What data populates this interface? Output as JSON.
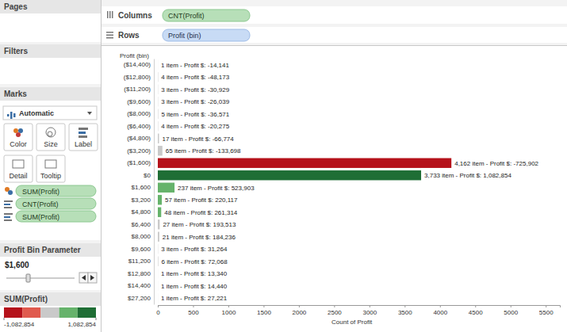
{
  "chart_data": {
    "type": "bar",
    "orientation": "horizontal",
    "data_labels": true,
    "grid": false,
    "y_label": "Profit (bin)",
    "x_label": "Count of Profit",
    "categories": [
      "($14,400)",
      "($12,800)",
      "($11,200)",
      "($9,600)",
      "($8,000)",
      "($6,400)",
      "($4,800)",
      "($3,200)",
      "($1,600)",
      "$0",
      "$1,600",
      "$3,200",
      "$4,800",
      "$6,400",
      "$8,000",
      "$9,600",
      "$11,200",
      "$12,800",
      "$14,400",
      "$27,200"
    ],
    "series": [
      {
        "values": [
          1,
          4,
          3,
          3,
          5,
          4,
          17,
          65,
          4162,
          3733,
          237,
          57,
          48,
          27,
          21,
          3,
          6,
          1,
          1,
          1
        ],
        "value_labels": [
          "1 item - Profit $: -14,141",
          "4 item - Profit $: -48,173",
          "3 item - Profit $: -30,929",
          "3 item - Profit $: -26,039",
          "5 item - Profit $: -36,571",
          "4 item - Profit $: -20,275",
          "17 item - Profit $: -66,774",
          "65 item - Profit $: -133,698",
          "4,162 item - Profit $: -725,902",
          "3,733 item - Profit $: 1,082,854",
          "237 item - Profit $: 523,903",
          "57 item - Profit $: 220,117",
          "48 item - Profit $: 261,314",
          "27 item - Profit $: 193,513",
          "21 item - Profit $: 184,236",
          "3 item - Profit $: 31,264",
          "6 item - Profit $: 72,068",
          "1 item - Profit $: 13,340",
          "1 item - Profit $: 14,440",
          "1 item - Profit $: 27,221"
        ],
        "color_values": [
          -14141,
          -48173,
          -30929,
          -26039,
          -36571,
          -20275,
          -66774,
          -133698,
          -725902,
          1082854,
          523903,
          220117,
          261314,
          193513,
          184236,
          31264,
          72068,
          13340,
          14440,
          27221
        ]
      }
    ],
    "xlim": [
      0,
      5700
    ],
    "xticks": [
      0,
      500,
      1000,
      1500,
      2000,
      2500,
      3000,
      3500,
      4000,
      4500,
      5000,
      5500
    ],
    "colorbar": {
      "title": "SUM(Profit)",
      "range": [
        -1082854,
        1082854
      ],
      "ticks": [
        {
          "value": -1082854,
          "label": "-1,082,854"
        },
        {
          "value": 1082854,
          "label": "1,082,854"
        }
      ]
    }
  },
  "ui": {
    "pages": "Pages",
    "columns": "Columns",
    "columns_pill": "CNT(Profit)",
    "rows": "Rows",
    "rows_pill": "Profit (bin)",
    "filters": "Filters",
    "marks": "Marks",
    "mark_type": "Automatic",
    "mark_buttons": [
      "Color",
      "Size",
      "Label",
      "Detail",
      "Tooltip"
    ],
    "mark_pills": [
      "SUM(Profit)",
      "CNT(Profit)",
      "SUM(Profit)"
    ],
    "parameter_title": "Profit Bin Parameter",
    "parameter_value": "$1,600"
  }
}
